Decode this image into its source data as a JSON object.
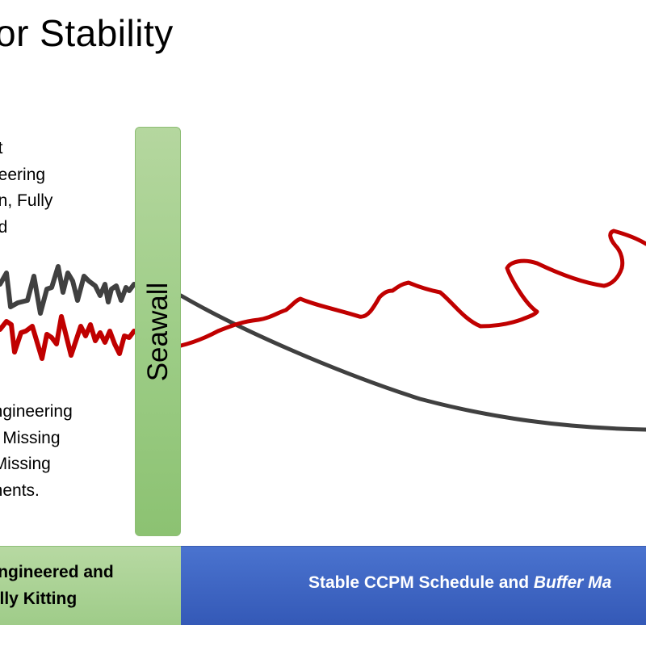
{
  "slide": {
    "title": "or Stability",
    "top_text": [
      "nt",
      "neering",
      "gn, Fully",
      "ed"
    ],
    "bottom_text": [
      "engineering",
      "n, Missing",
      ". Missing",
      "onents."
    ],
    "seawall_label": "Seawall",
    "bottom_bar": {
      "left_lines": [
        "lly Engineered and",
        "lly Kitting"
      ],
      "right_text_plain": "Stable CCPM Schedule and ",
      "right_text_italic": "Buffer Ma"
    }
  },
  "colors": {
    "red_line": "#c00000",
    "gray_line": "#404040",
    "seawall_green": "#9ccc85",
    "bar_blue": "#3e64c4",
    "bar_green": "#a9d18e"
  }
}
